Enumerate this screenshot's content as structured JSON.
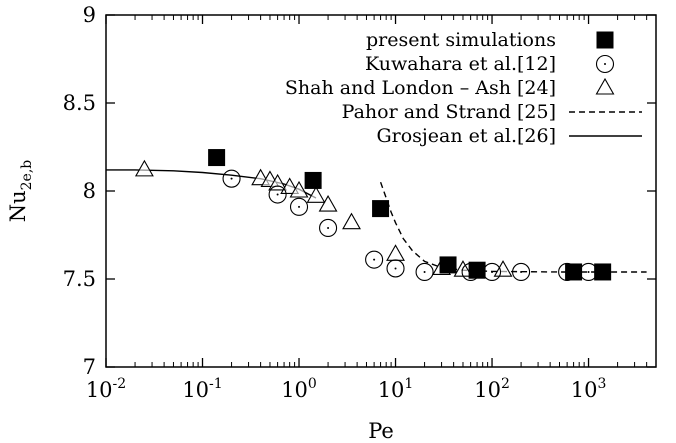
{
  "chart_data": {
    "type": "scatter",
    "title": "",
    "xlabel": "Pe",
    "ylabel": {
      "base": "Nu",
      "subscript": "2e,b"
    },
    "xscale": "log",
    "xlim": [
      0.01,
      5000
    ],
    "ylim": [
      7,
      9
    ],
    "x_ticks": [
      {
        "value": 0.01,
        "base": "10",
        "exp": "-2"
      },
      {
        "value": 0.1,
        "base": "10",
        "exp": "-1"
      },
      {
        "value": 1,
        "base": "10",
        "exp": "0"
      },
      {
        "value": 10,
        "base": "10",
        "exp": "1"
      },
      {
        "value": 100,
        "base": "10",
        "exp": "2"
      },
      {
        "value": 1000,
        "base": "10",
        "exp": "3"
      }
    ],
    "y_ticks": [
      {
        "value": 7,
        "label": "7"
      },
      {
        "value": 7.5,
        "label": "7.5"
      },
      {
        "value": 8,
        "label": "8"
      },
      {
        "value": 8.5,
        "label": "8.5"
      },
      {
        "value": 9,
        "label": "9"
      }
    ],
    "grid": false,
    "legend_position": "top-right",
    "series": [
      {
        "name": "present simulations",
        "marker": "filled-square",
        "points": [
          [
            0.14,
            8.19
          ],
          [
            1.4,
            8.06
          ],
          [
            7,
            7.9
          ],
          [
            35,
            7.58
          ],
          [
            70,
            7.55
          ],
          [
            700,
            7.54
          ],
          [
            1400,
            7.54
          ]
        ]
      },
      {
        "name": "Kuwahara et al.[12]",
        "marker": "open-circle",
        "points": [
          [
            0.2,
            8.07
          ],
          [
            0.6,
            7.98
          ],
          [
            1.0,
            7.91
          ],
          [
            2.0,
            7.79
          ],
          [
            6,
            7.61
          ],
          [
            10,
            7.56
          ],
          [
            20,
            7.54
          ],
          [
            60,
            7.54
          ],
          [
            100,
            7.54
          ],
          [
            200,
            7.54
          ],
          [
            600,
            7.54
          ],
          [
            1000,
            7.54
          ]
        ]
      },
      {
        "name": "Shah and London – Ash [24]",
        "marker": "open-triangle",
        "points": [
          [
            0.025,
            8.12
          ],
          [
            0.4,
            8.07
          ],
          [
            0.5,
            8.06
          ],
          [
            0.6,
            8.04
          ],
          [
            0.8,
            8.02
          ],
          [
            1.0,
            8.0
          ],
          [
            1.5,
            7.97
          ],
          [
            2.0,
            7.92
          ],
          [
            3.5,
            7.82
          ],
          [
            10,
            7.64
          ],
          [
            30,
            7.56
          ],
          [
            50,
            7.55
          ],
          [
            130,
            7.55
          ]
        ]
      },
      {
        "name": "Pahor and Strand [25]",
        "marker": "dashed-line",
        "points": [
          [
            7,
            8.05
          ],
          [
            8,
            7.96
          ],
          [
            9,
            7.88
          ],
          [
            10,
            7.82
          ],
          [
            12,
            7.73
          ],
          [
            15,
            7.66
          ],
          [
            20,
            7.6
          ],
          [
            30,
            7.565
          ],
          [
            50,
            7.55
          ],
          [
            100,
            7.543
          ],
          [
            500,
            7.54
          ],
          [
            4000,
            7.54
          ]
        ]
      },
      {
        "name": "Grosjean et al.[26]",
        "marker": "solid-line",
        "points": [
          [
            0.01,
            8.12
          ],
          [
            0.02,
            8.12
          ],
          [
            0.05,
            8.115
          ],
          [
            0.1,
            8.105
          ],
          [
            0.2,
            8.09
          ],
          [
            0.4,
            8.07
          ],
          [
            0.7,
            8.04
          ],
          [
            1.0,
            8.01
          ],
          [
            1.5,
            7.96
          ]
        ]
      }
    ]
  }
}
